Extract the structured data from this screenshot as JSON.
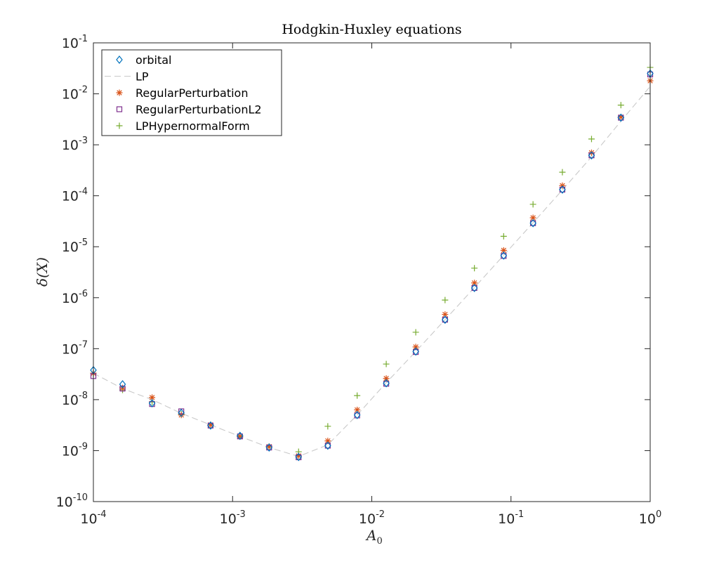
{
  "chart_data": {
    "type": "scatter",
    "title": "Hodgkin-Huxley equations",
    "xlabel": "A",
    "xlabel_sub": "0",
    "ylabel": "δ(X)",
    "xscale": "log",
    "yscale": "log",
    "xlim": [
      0.0001,
      1
    ],
    "ylim": [
      1e-10,
      0.1
    ],
    "xtick_exponents": [
      -4,
      -3,
      -2,
      -1,
      0
    ],
    "ytick_exponents": [
      -10,
      -9,
      -8,
      -7,
      -6,
      -5,
      -4,
      -3,
      -2,
      -1
    ],
    "tick_base": "10",
    "grid": false,
    "legend_position": "top-left",
    "x": [
      0.0001,
      0.000162,
      0.000264,
      0.000428,
      0.000695,
      0.00113,
      0.00183,
      0.00298,
      0.00483,
      0.00785,
      0.0127,
      0.0207,
      0.0336,
      0.0546,
      0.0886,
      0.144,
      0.234,
      0.379,
      0.616,
      1
    ],
    "series": [
      {
        "name": "orbital",
        "marker": "diamond",
        "color": "#0072BD",
        "values": [
          3.8e-08,
          2e-08,
          8.5e-09,
          5.5e-09,
          3.1e-09,
          1.95e-09,
          1.15e-09,
          7.5e-10,
          1.25e-09,
          5e-09,
          2.1e-08,
          8.8e-08,
          3.7e-07,
          1.55e-06,
          6.7e-06,
          2.9e-05,
          0.000132,
          0.00062,
          0.0034,
          0.025
        ]
      },
      {
        "name": "LP",
        "marker": "dashed-line",
        "color": "#C9C9C9",
        "values": [
          3.3e-08,
          1.65e-08,
          1e-08,
          5.4e-09,
          3.2e-09,
          1.9e-09,
          1.15e-09,
          7.7e-10,
          1.3e-09,
          5e-09,
          2.15e-08,
          8.8e-08,
          3.7e-07,
          1.58e-06,
          6.8e-06,
          2.95e-05,
          0.00013,
          0.00058,
          0.0029,
          0.014
        ]
      },
      {
        "name": "RegularPerturbation",
        "marker": "asterisk",
        "color": "#D95319",
        "values": [
          3.3e-08,
          1.7e-08,
          1.1e-08,
          5e-09,
          3.2e-09,
          1.9e-09,
          1.2e-09,
          7.9e-10,
          1.55e-09,
          6.3e-09,
          2.6e-08,
          1.08e-07,
          4.7e-07,
          1.95e-06,
          8.5e-06,
          3.7e-05,
          0.000158,
          0.0007,
          0.0035,
          0.018
        ]
      },
      {
        "name": "RegularPerturbationL2",
        "marker": "square",
        "color": "#7E2F8E",
        "values": [
          2.9e-08,
          1.65e-08,
          8.2e-09,
          5.9e-09,
          3.1e-09,
          1.9e-09,
          1.15e-09,
          7.4e-10,
          1.25e-09,
          4.9e-09,
          2.05e-08,
          8.6e-08,
          3.7e-07,
          1.55e-06,
          6.6e-06,
          2.9e-05,
          0.000132,
          0.00062,
          0.0034,
          0.024
        ]
      },
      {
        "name": "LPHypernormalForm",
        "marker": "plus",
        "color": "#77AC30",
        "values": [
          3.3e-08,
          1.55e-08,
          9e-09,
          5.2e-09,
          3.2e-09,
          1.95e-09,
          1.2e-09,
          9.5e-10,
          3e-09,
          1.2e-08,
          5e-08,
          2.1e-07,
          9e-07,
          3.8e-06,
          1.6e-05,
          6.8e-05,
          0.00029,
          0.0013,
          0.006,
          0.033
        ]
      }
    ]
  }
}
